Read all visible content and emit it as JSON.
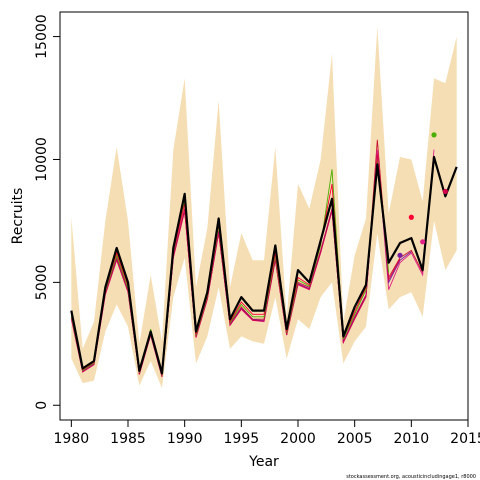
{
  "chart_data": {
    "type": "line",
    "xlabel": "Year",
    "ylabel": "Recruits",
    "footnote": "stockassessment.org, acousticincludingage1, r8000",
    "xlim": [
      1979,
      2015
    ],
    "ylim": [
      -600,
      16000
    ],
    "x_ticks": [
      1980,
      1985,
      1990,
      1995,
      2000,
      2005,
      2010,
      2015
    ],
    "y_ticks": [
      0,
      5000,
      10000,
      15000
    ],
    "grid": false,
    "colors": {
      "band": "#f5deb3",
      "main_line": "#000000",
      "retro_lines": [
        "#c8102e",
        "#e0218a",
        "#7a1fa2",
        "#d4004a",
        "#4caf00",
        "#ff0033"
      ]
    },
    "years": [
      1980,
      1981,
      1982,
      1983,
      1984,
      1985,
      1986,
      1987,
      1988,
      1989,
      1990,
      1991,
      1992,
      1993,
      1994,
      1995,
      1996,
      1997,
      1998,
      1999,
      2000,
      2001,
      2002,
      2003,
      2004,
      2005,
      2006,
      2007,
      2008,
      2009,
      2010,
      2011,
      2012,
      2013,
      2014
    ],
    "band_upper": [
      7650,
      2300,
      3400,
      7500,
      10500,
      7500,
      2500,
      5300,
      2600,
      10400,
      13300,
      4800,
      7200,
      12400,
      4800,
      7000,
      5900,
      5900,
      10500,
      3600,
      9000,
      8000,
      10000,
      14300,
      3400,
      6100,
      7600,
      15400,
      7800,
      10100,
      10000,
      8300,
      13300,
      13100,
      15000
    ],
    "band_lower": [
      1900,
      900,
      1000,
      3000,
      4100,
      3200,
      800,
      1800,
      700,
      4400,
      6000,
      1700,
      2800,
      4800,
      2300,
      2800,
      2600,
      2500,
      4400,
      1900,
      3500,
      3100,
      4400,
      5000,
      1700,
      2600,
      3200,
      7000,
      3900,
      4400,
      4600,
      3600,
      7500,
      5500,
      6300
    ],
    "main_series": [
      3850,
      1500,
      1800,
      4800,
      6400,
      5000,
      1400,
      3000,
      1300,
      6400,
      8600,
      3000,
      4600,
      7600,
      3500,
      4400,
      3850,
      3850,
      6500,
      3100,
      5500,
      5000,
      6700,
      8400,
      2800,
      4000,
      4900,
      9800,
      5800,
      6600,
      6800,
      5500,
      10100,
      8500,
      9700
    ],
    "retro_series": [
      {
        "values": [
          3700,
          1400,
          1700,
          4600,
          6000,
          4700,
          1300,
          2900,
          1200,
          6100,
          8000,
          2800,
          4400,
          7100,
          3300,
          4000,
          3500,
          3500,
          6000,
          2900,
          5000,
          4800,
          6300,
          8000,
          2600,
          3600,
          4500,
          10800,
          5200,
          6000,
          6300,
          5400
        ]
      },
      {
        "values": [
          3500,
          1350,
          1650,
          4500,
          5900,
          4600,
          1250,
          2850,
          1150,
          6000,
          7900,
          2750,
          4300,
          7000,
          3250,
          3900,
          3450,
          3400,
          5900,
          2850,
          4900,
          4700,
          6200,
          7900,
          2550,
          3500,
          4400,
          10400,
          4700,
          5800,
          6200,
          5300,
          10400
        ]
      },
      {
        "values": [
          3600,
          1380,
          1680,
          4550,
          5950,
          4650,
          1280,
          2880,
          1180,
          6050,
          7950,
          2780,
          4350,
          7050,
          3280,
          3950,
          3480,
          3450,
          5950,
          2880,
          4950,
          4750,
          6250,
          7950,
          2580,
          3550,
          4450,
          10100,
          5000,
          5900,
          6250
        ]
      },
      {
        "values": [
          3550,
          1360,
          1660,
          4520,
          5920,
          4620,
          1260,
          2860,
          1160,
          6020,
          7920,
          2760,
          4320,
          7020,
          3260,
          3920,
          3460,
          3420,
          5920,
          2860,
          4920,
          4720,
          6220,
          7920,
          2560,
          3520,
          4420,
          10200,
          5100,
          5950
        ]
      },
      {
        "values": [
          3650,
          1420,
          1720,
          4650,
          6100,
          4750,
          1320,
          3100,
          1220,
          6200,
          8300,
          2850,
          4450,
          7300,
          3350,
          4100,
          3600,
          3600,
          6100,
          2950,
          5100,
          4850,
          6500,
          9600,
          2700,
          3700,
          4700,
          10000,
          5400
        ]
      },
      {
        "values": [
          3800,
          1450,
          1750,
          4700,
          6200,
          4850,
          1350,
          2950,
          1250,
          6250,
          8200,
          2900,
          4500,
          7400,
          3400,
          4200,
          3700,
          3700,
          6200,
          3000,
          5200,
          4900,
          6600,
          9000,
          2750,
          3800,
          4800,
          10000
        ]
      }
    ],
    "terminal_points": [
      {
        "year": 2009,
        "value": 6100,
        "color": "#7a1fa2"
      },
      {
        "year": 2010,
        "value": 7650,
        "color": "#ff0033"
      },
      {
        "year": 2011,
        "value": 6650,
        "color": "#e0218a"
      },
      {
        "year": 2012,
        "value": 11000,
        "color": "#4caf00"
      },
      {
        "year": 2013,
        "value": 8700,
        "color": "#d4004a"
      }
    ]
  }
}
